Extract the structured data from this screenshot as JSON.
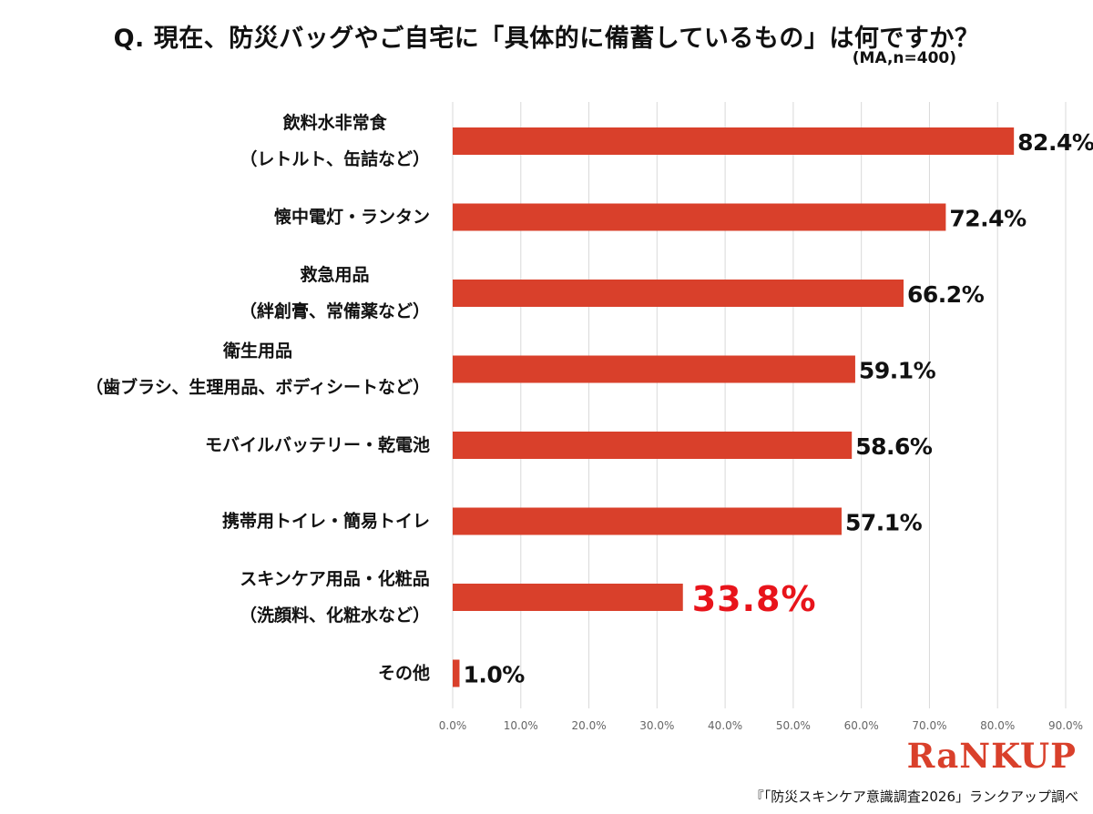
{
  "title": "Q. 現在、防災バッグやご自宅に「具体的に備蓄しているもの」は何ですか？",
  "subtitle": "(MA,n=400)",
  "logo_text": "RaNKUP",
  "source_text": "『「防災スキンケア意識調査2026」ランクアップ調べ",
  "colors": {
    "bar": "#d9402b",
    "highlight_label": "#e8141b",
    "grid": "#d9d9d9",
    "axis_text": "#666666"
  },
  "chart_data": {
    "type": "bar",
    "orientation": "horizontal",
    "title": "Q. 現在、防災バッグやご自宅に「具体的に備蓄しているもの」は何ですか？",
    "xlim": [
      0,
      90
    ],
    "ticks": [
      "0.0%",
      "10.0%",
      "20.0%",
      "30.0%",
      "40.0%",
      "50.0%",
      "60.0%",
      "70.0%",
      "80.0%",
      "90.0%"
    ],
    "grid": true,
    "categories": [
      [
        "飲料水非常食",
        "（レトルト、缶詰など）"
      ],
      [
        "懐中電灯・ランタン"
      ],
      [
        "救急用品",
        "（絆創膏、常備薬など）"
      ],
      [
        "衛生用品",
        "（歯ブラシ、生理用品、ボディシートなど）"
      ],
      [
        "モバイルバッテリー・乾電池"
      ],
      [
        "携帯用トイレ・簡易トイレ"
      ],
      [
        "スキンケア用品・化粧品",
        "（洗顔料、化粧水など）"
      ],
      [
        "その他"
      ]
    ],
    "values": [
      82.4,
      72.4,
      66.2,
      59.1,
      58.6,
      57.1,
      33.8,
      1.0
    ],
    "value_labels": [
      "82.4%",
      "72.4%",
      "66.2%",
      "59.1%",
      "58.6%",
      "57.1%",
      "33.8%",
      "1.0%"
    ],
    "highlight_index": 6
  }
}
